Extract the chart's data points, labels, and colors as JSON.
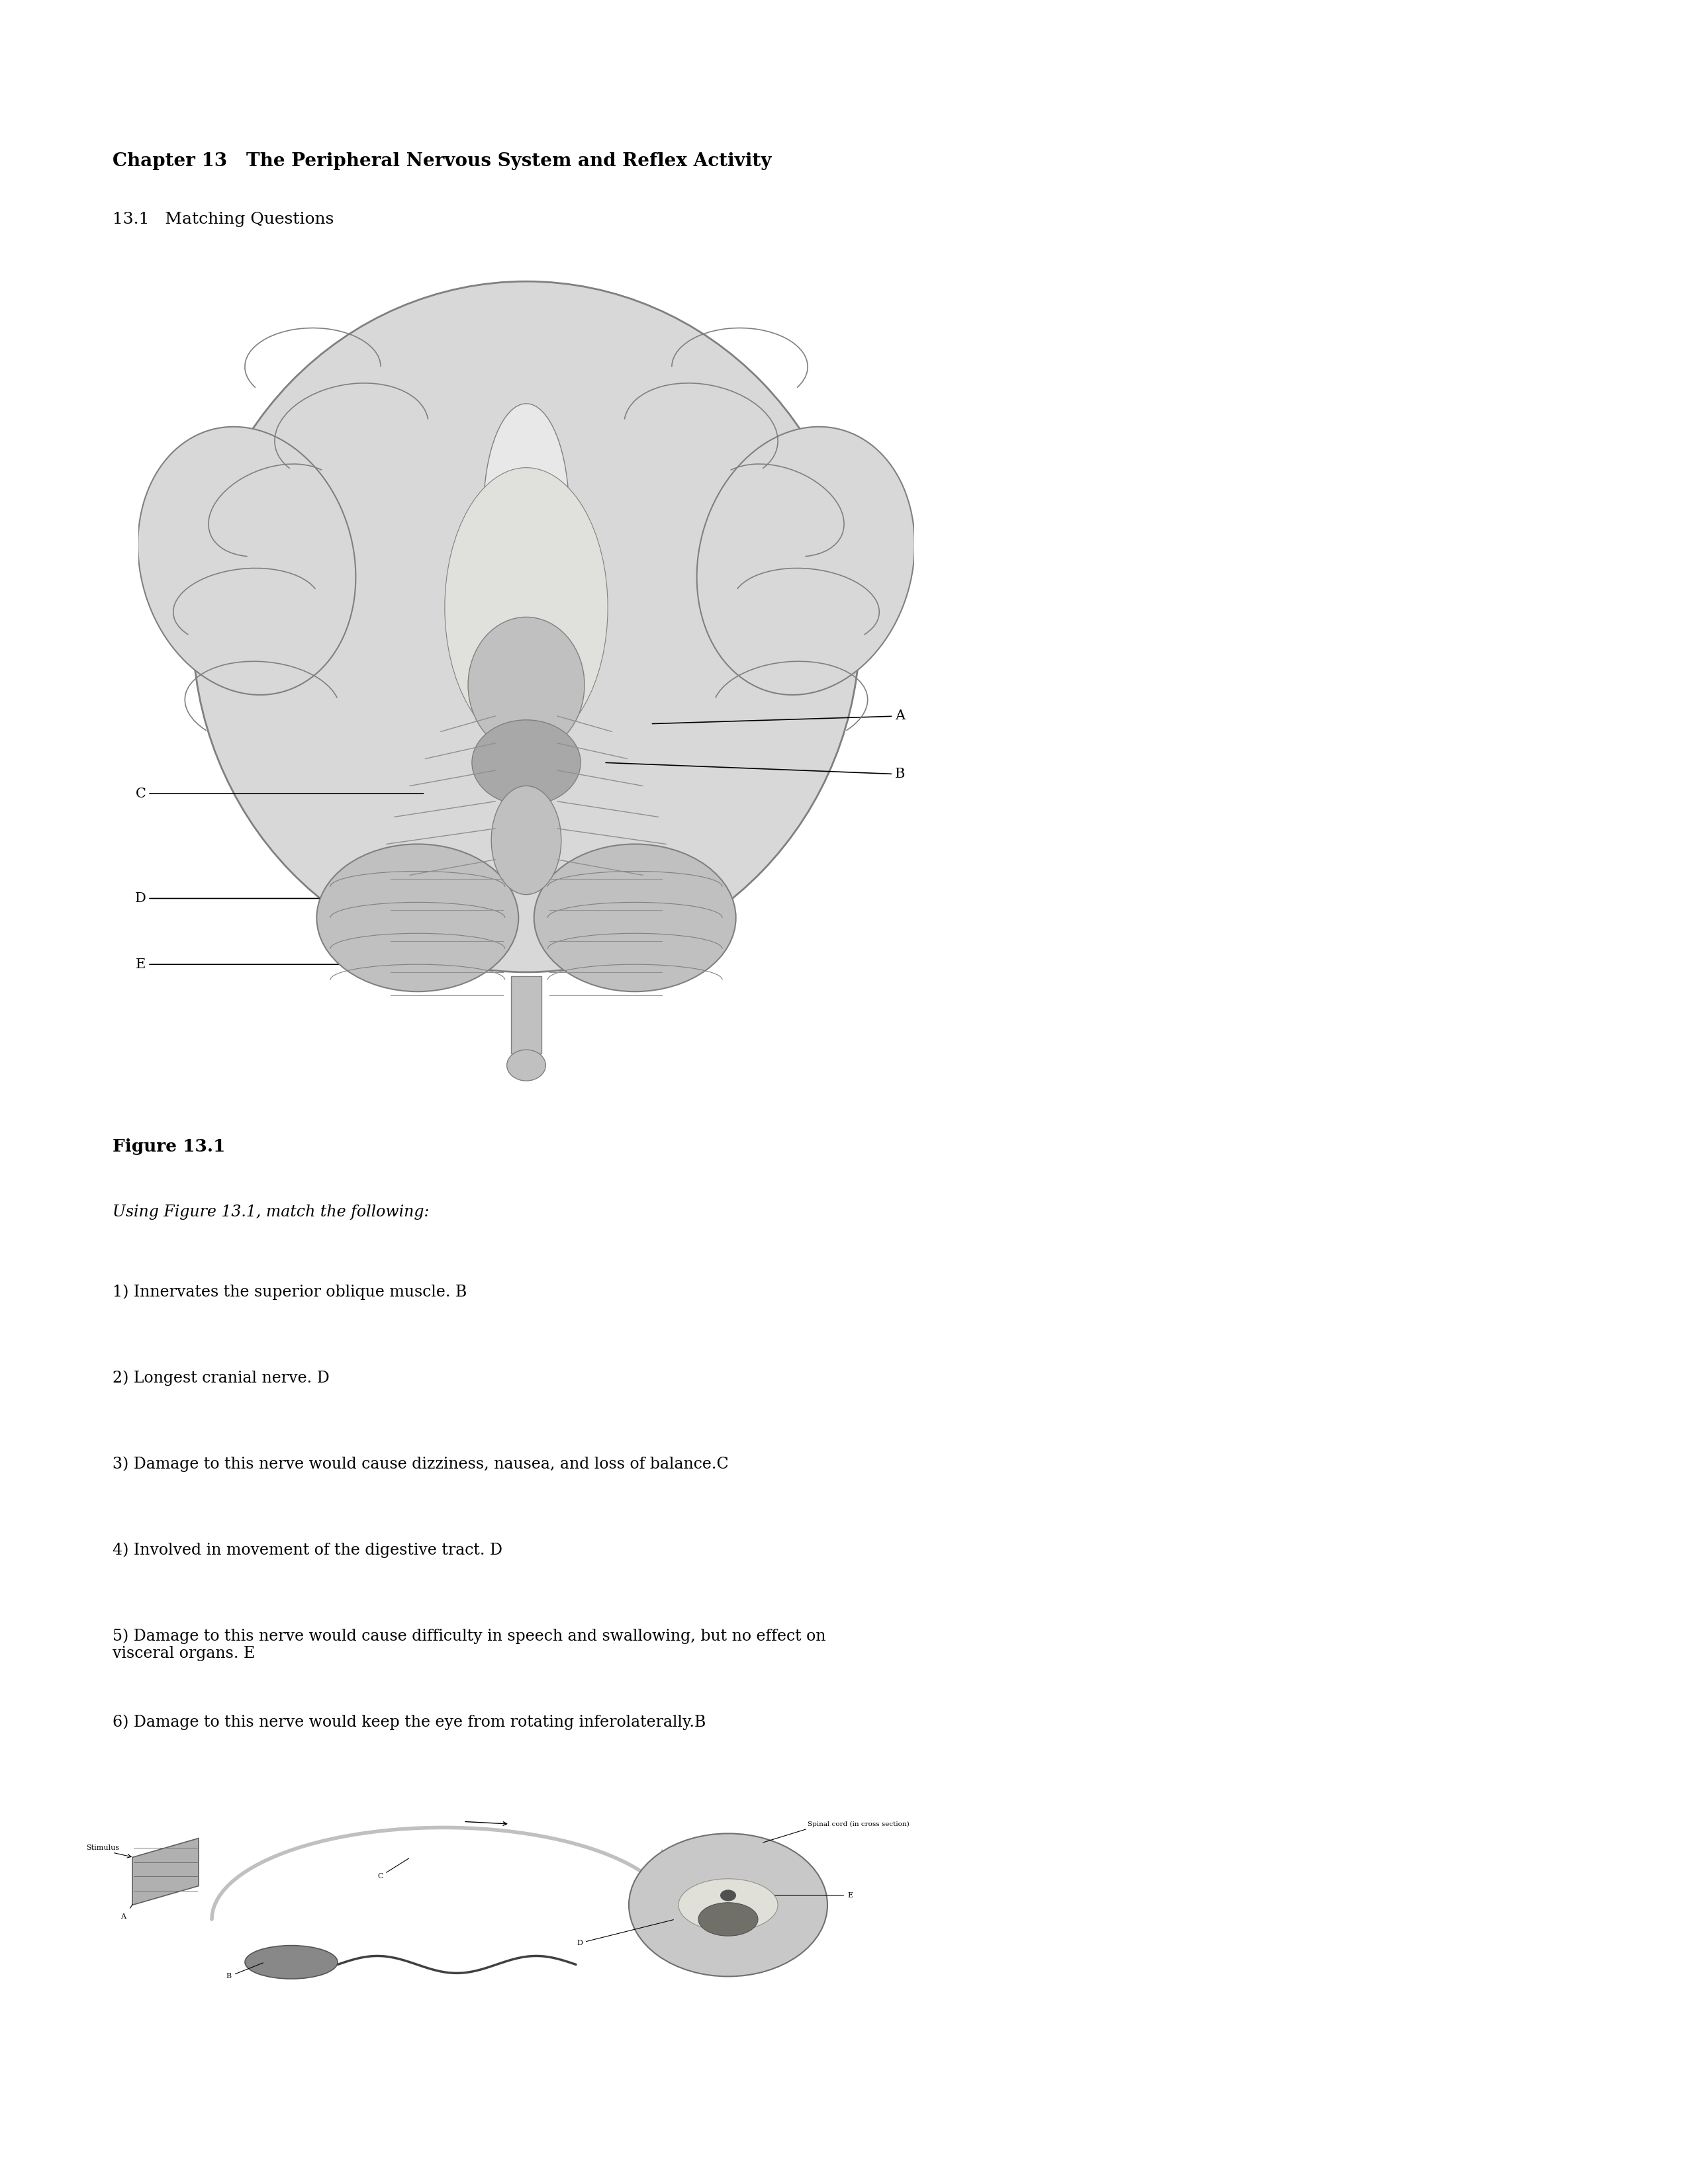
{
  "title": "Chapter 13   The Peripheral Nervous System and Reflex Activity",
  "section": "13.1   Matching Questions",
  "figure_label": "Figure 13.1",
  "instruction": "Using Figure 13.1, match the following:",
  "questions": [
    "1) Innervates the superior oblique muscle. B",
    "2) Longest cranial nerve. D",
    "3) Damage to this nerve would cause dizziness, nausea, and loss of balance.C",
    "4) Involved in movement of the digestive tract. D",
    "5) Damage to this nerve would cause difficulty in speech and swallowing, but no effect on\nvisceral organs. E",
    "6) Damage to this nerve would keep the eye from rotating inferolaterally.B"
  ],
  "bg_color": "#ffffff",
  "text_color": "#000000",
  "title_fontsize": 20,
  "section_fontsize": 18,
  "body_fontsize": 17,
  "label_fontsize": 15,
  "fig_caption_fontsize": 19,
  "instr_fontsize": 17,
  "brain_label_A": "A",
  "brain_label_B": "B",
  "brain_label_C": "C",
  "brain_label_D": "D",
  "brain_label_E": "E",
  "reflex_label_stimulus": "Stimulus",
  "reflex_label_spinal": "Spinal cord (in cross section)",
  "reflex_label_A": "A",
  "reflex_label_B": "B",
  "reflex_label_C": "C",
  "reflex_label_D": "D",
  "reflex_label_E": "E"
}
